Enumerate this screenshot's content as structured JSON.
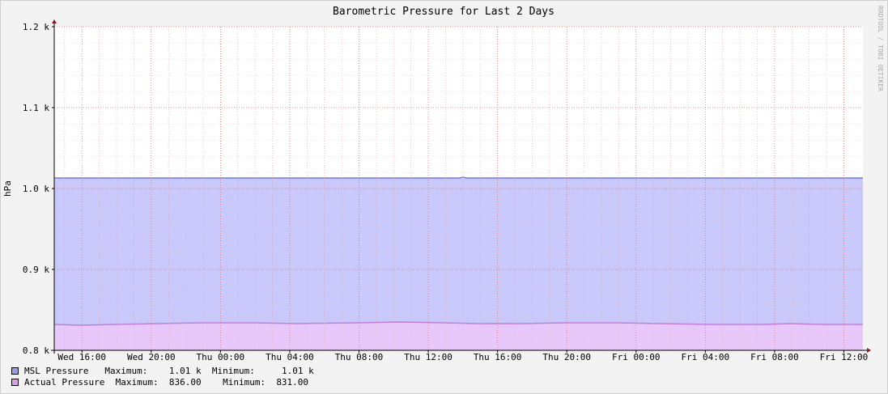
{
  "chart_data": {
    "type": "area",
    "title": "Barometric Pressure for Last 2 Days",
    "ylabel": "hPa",
    "watermark": "RRDTOOL / TOBI OETIKER",
    "ylim": [
      800,
      1200
    ],
    "yticks": [
      {
        "value": 800,
        "label": "0.8 k"
      },
      {
        "value": 900,
        "label": "0.9 k"
      },
      {
        "value": 1000,
        "label": "1.0 k"
      },
      {
        "value": 1100,
        "label": "1.1 k"
      },
      {
        "value": 1200,
        "label": "1.2 k"
      }
    ],
    "xlim_hours": [
      0,
      46.7
    ],
    "xticks": [
      {
        "hour": 1.6,
        "label": "Wed 16:00"
      },
      {
        "hour": 5.6,
        "label": "Wed 20:00"
      },
      {
        "hour": 9.6,
        "label": "Thu 00:00"
      },
      {
        "hour": 13.6,
        "label": "Thu 04:00"
      },
      {
        "hour": 17.6,
        "label": "Thu 08:00"
      },
      {
        "hour": 21.6,
        "label": "Thu 12:00"
      },
      {
        "hour": 25.6,
        "label": "Thu 16:00"
      },
      {
        "hour": 29.6,
        "label": "Thu 20:00"
      },
      {
        "hour": 33.6,
        "label": "Fri 00:00"
      },
      {
        "hour": 37.6,
        "label": "Fri 04:00"
      },
      {
        "hour": 41.6,
        "label": "Fri 08:00"
      },
      {
        "hour": 45.6,
        "label": "Fri 12:00"
      }
    ],
    "grid": true,
    "series": [
      {
        "name": "MSL Pressure",
        "fill": "#c8c8fa",
        "line": "#7b7bd8",
        "x_hours": [
          0,
          10,
          23.4,
          23.6,
          23.8,
          35,
          46.7
        ],
        "values": [
          1013,
          1013,
          1013,
          1014,
          1013,
          1013,
          1013
        ]
      },
      {
        "name": "Actual Pressure",
        "fill": "#e8c8fa",
        "line": "#c080d8",
        "x_hours": [
          0,
          1.5,
          3.5,
          6,
          8.5,
          11.5,
          14,
          17.5,
          20,
          22.5,
          24.5,
          27,
          29.5,
          32.5,
          35,
          38,
          41,
          42.5,
          44.5,
          46.7
        ],
        "values": [
          832,
          831,
          832,
          833,
          834,
          834,
          833,
          834,
          835,
          834,
          833,
          833,
          834,
          834,
          833,
          832,
          832,
          833,
          832,
          832
        ]
      }
    ]
  },
  "legend": [
    {
      "color": "#9999ee",
      "name": "MSL Pressure",
      "max_label": "Maximum:",
      "max": "1.01 k",
      "min_label": "Minimum:",
      "min": "1.01 k"
    },
    {
      "color": "#d6a0ee",
      "name": "Actual Pressure",
      "max_label": "Maximum:",
      "max": "836.00",
      "min_label": "Minimum:",
      "min": "831.00"
    }
  ]
}
